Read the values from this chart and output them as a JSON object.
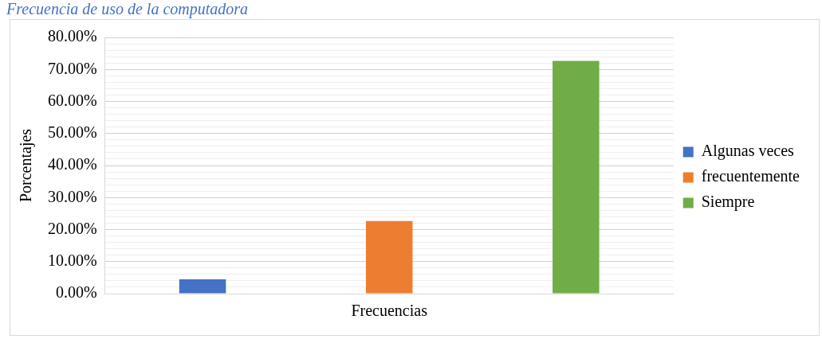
{
  "chart_data": {
    "type": "bar",
    "title": "Frecuencia de uso de la computadora",
    "ylabel": "Porcentajes",
    "categories": [
      "Frecuencias"
    ],
    "series": [
      {
        "name": "Algunas veces",
        "color": "#4472c4",
        "values": [
          4.5
        ]
      },
      {
        "name": "frecuentemente",
        "color": "#ed7d31",
        "values": [
          22.7
        ]
      },
      {
        "name": "Siempre",
        "color": "#70ad47",
        "values": [
          72.7
        ]
      }
    ],
    "ylim": [
      0,
      80
    ],
    "yticks": [
      {
        "value": 0,
        "label": "0.00%"
      },
      {
        "value": 2,
        "label": null
      },
      {
        "value": 4,
        "label": null
      },
      {
        "value": 6,
        "label": null
      },
      {
        "value": 8,
        "label": null
      },
      {
        "value": 10,
        "label": "10.00%"
      },
      {
        "value": 12,
        "label": null
      },
      {
        "value": 14,
        "label": null
      },
      {
        "value": 16,
        "label": null
      },
      {
        "value": 18,
        "label": null
      },
      {
        "value": 20,
        "label": "20.00%"
      },
      {
        "value": 22,
        "label": null
      },
      {
        "value": 24,
        "label": null
      },
      {
        "value": 26,
        "label": null
      },
      {
        "value": 28,
        "label": null
      },
      {
        "value": 30,
        "label": "30.00%"
      },
      {
        "value": 32,
        "label": null
      },
      {
        "value": 34,
        "label": null
      },
      {
        "value": 36,
        "label": null
      },
      {
        "value": 38,
        "label": null
      },
      {
        "value": 40,
        "label": "40.00%"
      },
      {
        "value": 42,
        "label": null
      },
      {
        "value": 44,
        "label": null
      },
      {
        "value": 46,
        "label": null
      },
      {
        "value": 48,
        "label": null
      },
      {
        "value": 50,
        "label": "50.00%"
      },
      {
        "value": 52,
        "label": null
      },
      {
        "value": 54,
        "label": null
      },
      {
        "value": 56,
        "label": null
      },
      {
        "value": 58,
        "label": null
      },
      {
        "value": 60,
        "label": "60.00%"
      },
      {
        "value": 62,
        "label": null
      },
      {
        "value": 64,
        "label": null
      },
      {
        "value": 66,
        "label": null
      },
      {
        "value": 68,
        "label": null
      },
      {
        "value": 70,
        "label": "70.00%"
      },
      {
        "value": 72,
        "label": null
      },
      {
        "value": 74,
        "label": null
      },
      {
        "value": 76,
        "label": null
      },
      {
        "value": 78,
        "label": null
      },
      {
        "value": 80,
        "label": "80.00%"
      }
    ],
    "grid": true,
    "legend": "right"
  }
}
